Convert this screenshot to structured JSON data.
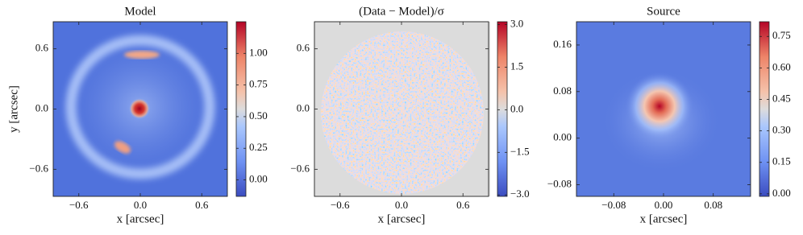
{
  "chart_data": [
    {
      "type": "image",
      "title": "Model",
      "xlabel": "x [arcsec]",
      "ylabel": "y [arcsec]",
      "xlim": [
        -0.85,
        0.85
      ],
      "ylim": [
        -0.87,
        0.87
      ],
      "xticks": [
        {
          "value": -0.6,
          "label": "−0.6"
        },
        {
          "value": 0,
          "label": "0.0"
        },
        0.6
      ],
      "yticks": [
        {
          "value": -0.6,
          "label": "−0.6"
        },
        {
          "value": 0,
          "label": "0.0"
        },
        0.6
      ],
      "colorbar": {
        "lim": [
          -0.13,
          1.25
        ],
        "ticks": [
          {
            "value": 0,
            "label": "0.00"
          },
          0.25,
          {
            "value": 0.5,
            "label": "0.50"
          },
          0.75,
          {
            "value": 1,
            "label": "1.00"
          }
        ]
      }
    },
    {
      "type": "image",
      "title": "(Data − Model)/σ",
      "xlabel": "x [arcsec]",
      "xlim": [
        -0.85,
        0.85
      ],
      "ylim": [
        -0.87,
        0.87
      ],
      "xticks": [
        {
          "value": -0.6,
          "label": "−0.6"
        },
        {
          "value": 0,
          "label": "0.0"
        },
        0.6
      ],
      "yticks": [
        {
          "value": -0.6,
          "label": "−0.6"
        },
        {
          "value": 0,
          "label": "0.0"
        },
        0.6
      ],
      "colorbar": {
        "lim": [
          -3.05,
          3.1
        ],
        "ticks": [
          {
            "value": -3,
            "label": "−3.0"
          },
          {
            "value": -1.5,
            "label": "−1.5"
          },
          {
            "value": 0,
            "label": "0.0"
          },
          1.5,
          {
            "value": 3,
            "label": "3.0"
          }
        ]
      }
    },
    {
      "type": "image",
      "title": "Source",
      "xlabel": "x [arcsec]",
      "xlim": [
        -0.14,
        0.14
      ],
      "ylim": [
        -0.1,
        0.2
      ],
      "xticks": [
        {
          "value": -0.08,
          "label": "−0.08"
        },
        {
          "value": 0,
          "label": "0.00"
        },
        0.08
      ],
      "yticks": [
        {
          "value": -0.08,
          "label": "−0.08"
        },
        {
          "value": 0,
          "label": "0.00"
        },
        0.08,
        0.16
      ],
      "colorbar": {
        "lim": [
          -0.012,
          0.82
        ],
        "ticks": [
          {
            "value": 0,
            "label": "0.00"
          },
          0.15,
          {
            "value": 0.3,
            "label": "0.30"
          },
          0.45,
          {
            "value": 0.6,
            "label": "0.60"
          },
          0.75
        ]
      }
    }
  ]
}
